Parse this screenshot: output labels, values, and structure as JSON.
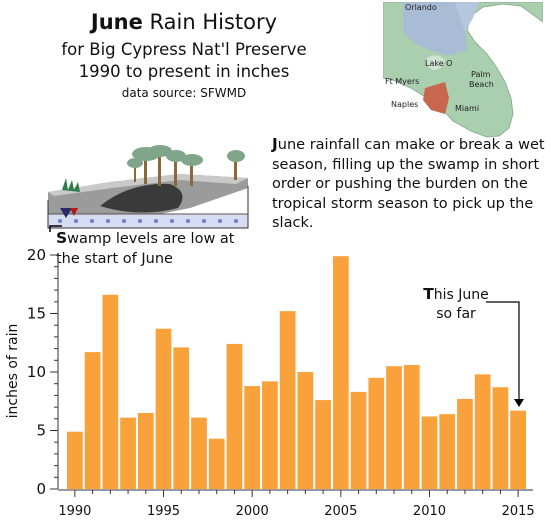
{
  "header": {
    "title_bold": "June",
    "title_rest": " Rain History",
    "subtitle_line1": "for Big Cypress Nat'l Preserve",
    "subtitle_line2": "1990 to present in inches",
    "source": "data source: SFWMD"
  },
  "map": {
    "labels": [
      "Orlando",
      "Lake O",
      "Ft Myers",
      "Palm",
      "Beach",
      "Naples",
      "Miami"
    ],
    "colors": {
      "land": "#a9cfae",
      "north": "#a9bcd6",
      "preserve": "#c8674e",
      "lake": "#cfe3d4"
    }
  },
  "paragraph": {
    "cap": "J",
    "text": "une rainfall can make or break a wet season, filling up the swamp in short order or pushing the burden on the tropical storm season to pick up the slack."
  },
  "swamp_note": {
    "cap": "S",
    "text": "wamp levels are low at the start of June"
  },
  "annotation": {
    "cap": "T",
    "line1_rest": "his June",
    "line2": "so far"
  },
  "chart_data": {
    "type": "bar",
    "title": "June Rain History",
    "ylabel": "inches of rain",
    "xlabel": "",
    "ylim": [
      0,
      20
    ],
    "yticks": [
      0,
      5,
      10,
      15,
      20
    ],
    "xticks": [
      1990,
      1995,
      2000,
      2005,
      2010,
      2015
    ],
    "grid": false,
    "bar_color": "#f9a23b",
    "x": [
      1990,
      1991,
      1992,
      1993,
      1994,
      1995,
      1996,
      1997,
      1998,
      1999,
      2000,
      2001,
      2002,
      2003,
      2004,
      2005,
      2006,
      2007,
      2008,
      2009,
      2010,
      2011,
      2012,
      2013,
      2014,
      2015
    ],
    "values": [
      4.9,
      11.7,
      16.6,
      6.1,
      6.5,
      13.7,
      12.1,
      6.1,
      4.3,
      12.4,
      8.8,
      9.2,
      15.2,
      10.0,
      7.6,
      19.9,
      8.3,
      9.5,
      10.5,
      10.6,
      6.2,
      6.4,
      7.7,
      9.8,
      8.7,
      6.7
    ]
  }
}
